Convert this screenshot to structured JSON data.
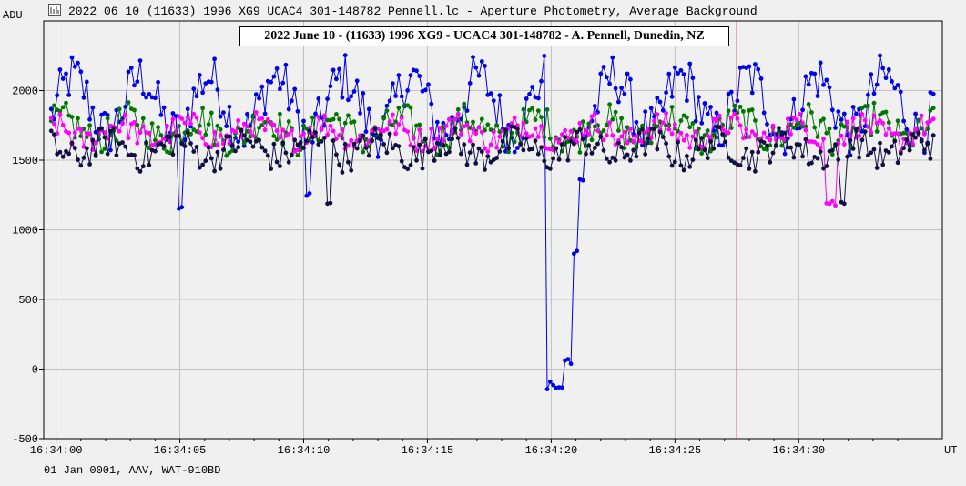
{
  "window": {
    "title": "2022 06 10 (11633) 1996 XG9 UCAC4 301-148782 Pennell.lc - Aperture Photometry, Average Background",
    "icon": "light-curve-icon"
  },
  "footer": {
    "text": "01 Jan 0001, AAV, WAT-910BD"
  },
  "chart_data": {
    "type": "line",
    "title": "2022 June 10 - (11633) 1996 XG9 - UCAC4 301-148782 - A. Pennell, Dunedin, NZ",
    "ylabel": "ADU",
    "xlabel": "UT",
    "ylim": [
      -500,
      2500
    ],
    "xlim": [
      -0.5,
      35.8
    ],
    "yticks": [
      -500,
      0,
      500,
      1000,
      1500,
      2000
    ],
    "xticks": [
      {
        "t": 0,
        "label": "16:34:00"
      },
      {
        "t": 5,
        "label": "16:34:05"
      },
      {
        "t": 10,
        "label": "16:34:10"
      },
      {
        "t": 15,
        "label": "16:34:15"
      },
      {
        "t": 20,
        "label": "16:34:20"
      },
      {
        "t": 25,
        "label": "16:34:25"
      },
      {
        "t": 30,
        "label": "16:34:30"
      }
    ],
    "grid": true,
    "cursor_time": 27.5,
    "cursor_color": "#cc0000",
    "series": [
      {
        "color": "#0000e6",
        "sample_step": 0.12,
        "base": 1900,
        "amp": 200,
        "noise": 180,
        "events": [
          {
            "t": 5.0,
            "value": 1150,
            "width": 0.15
          },
          {
            "t": 10.2,
            "value": 1250,
            "width": 0.1
          },
          {
            "t": 20.0,
            "value": 600,
            "width": 0.1
          },
          {
            "t": 20.2,
            "value": -120,
            "width": 0.45
          },
          {
            "t": 20.7,
            "value": 60,
            "width": 0.25
          },
          {
            "t": 21.0,
            "value": 850,
            "width": 0.1
          },
          {
            "t": 21.2,
            "value": 1350,
            "width": 0.15
          }
        ]
      },
      {
        "color": "#007800",
        "sample_step": 0.12,
        "base": 1720,
        "amp": 80,
        "noise": 120,
        "events": []
      },
      {
        "color": "#ff00ff",
        "sample_step": 0.12,
        "base": 1700,
        "amp": 60,
        "noise": 90,
        "events": [
          {
            "t": 31.3,
            "value": 1200,
            "width": 0.2
          }
        ]
      },
      {
        "color": "#101040",
        "sample_step": 0.12,
        "base": 1580,
        "amp": 60,
        "noise": 110,
        "events": [
          {
            "t": 11.0,
            "value": 1200,
            "width": 0.15
          },
          {
            "t": 31.8,
            "value": 1180,
            "width": 0.15
          }
        ]
      }
    ]
  }
}
